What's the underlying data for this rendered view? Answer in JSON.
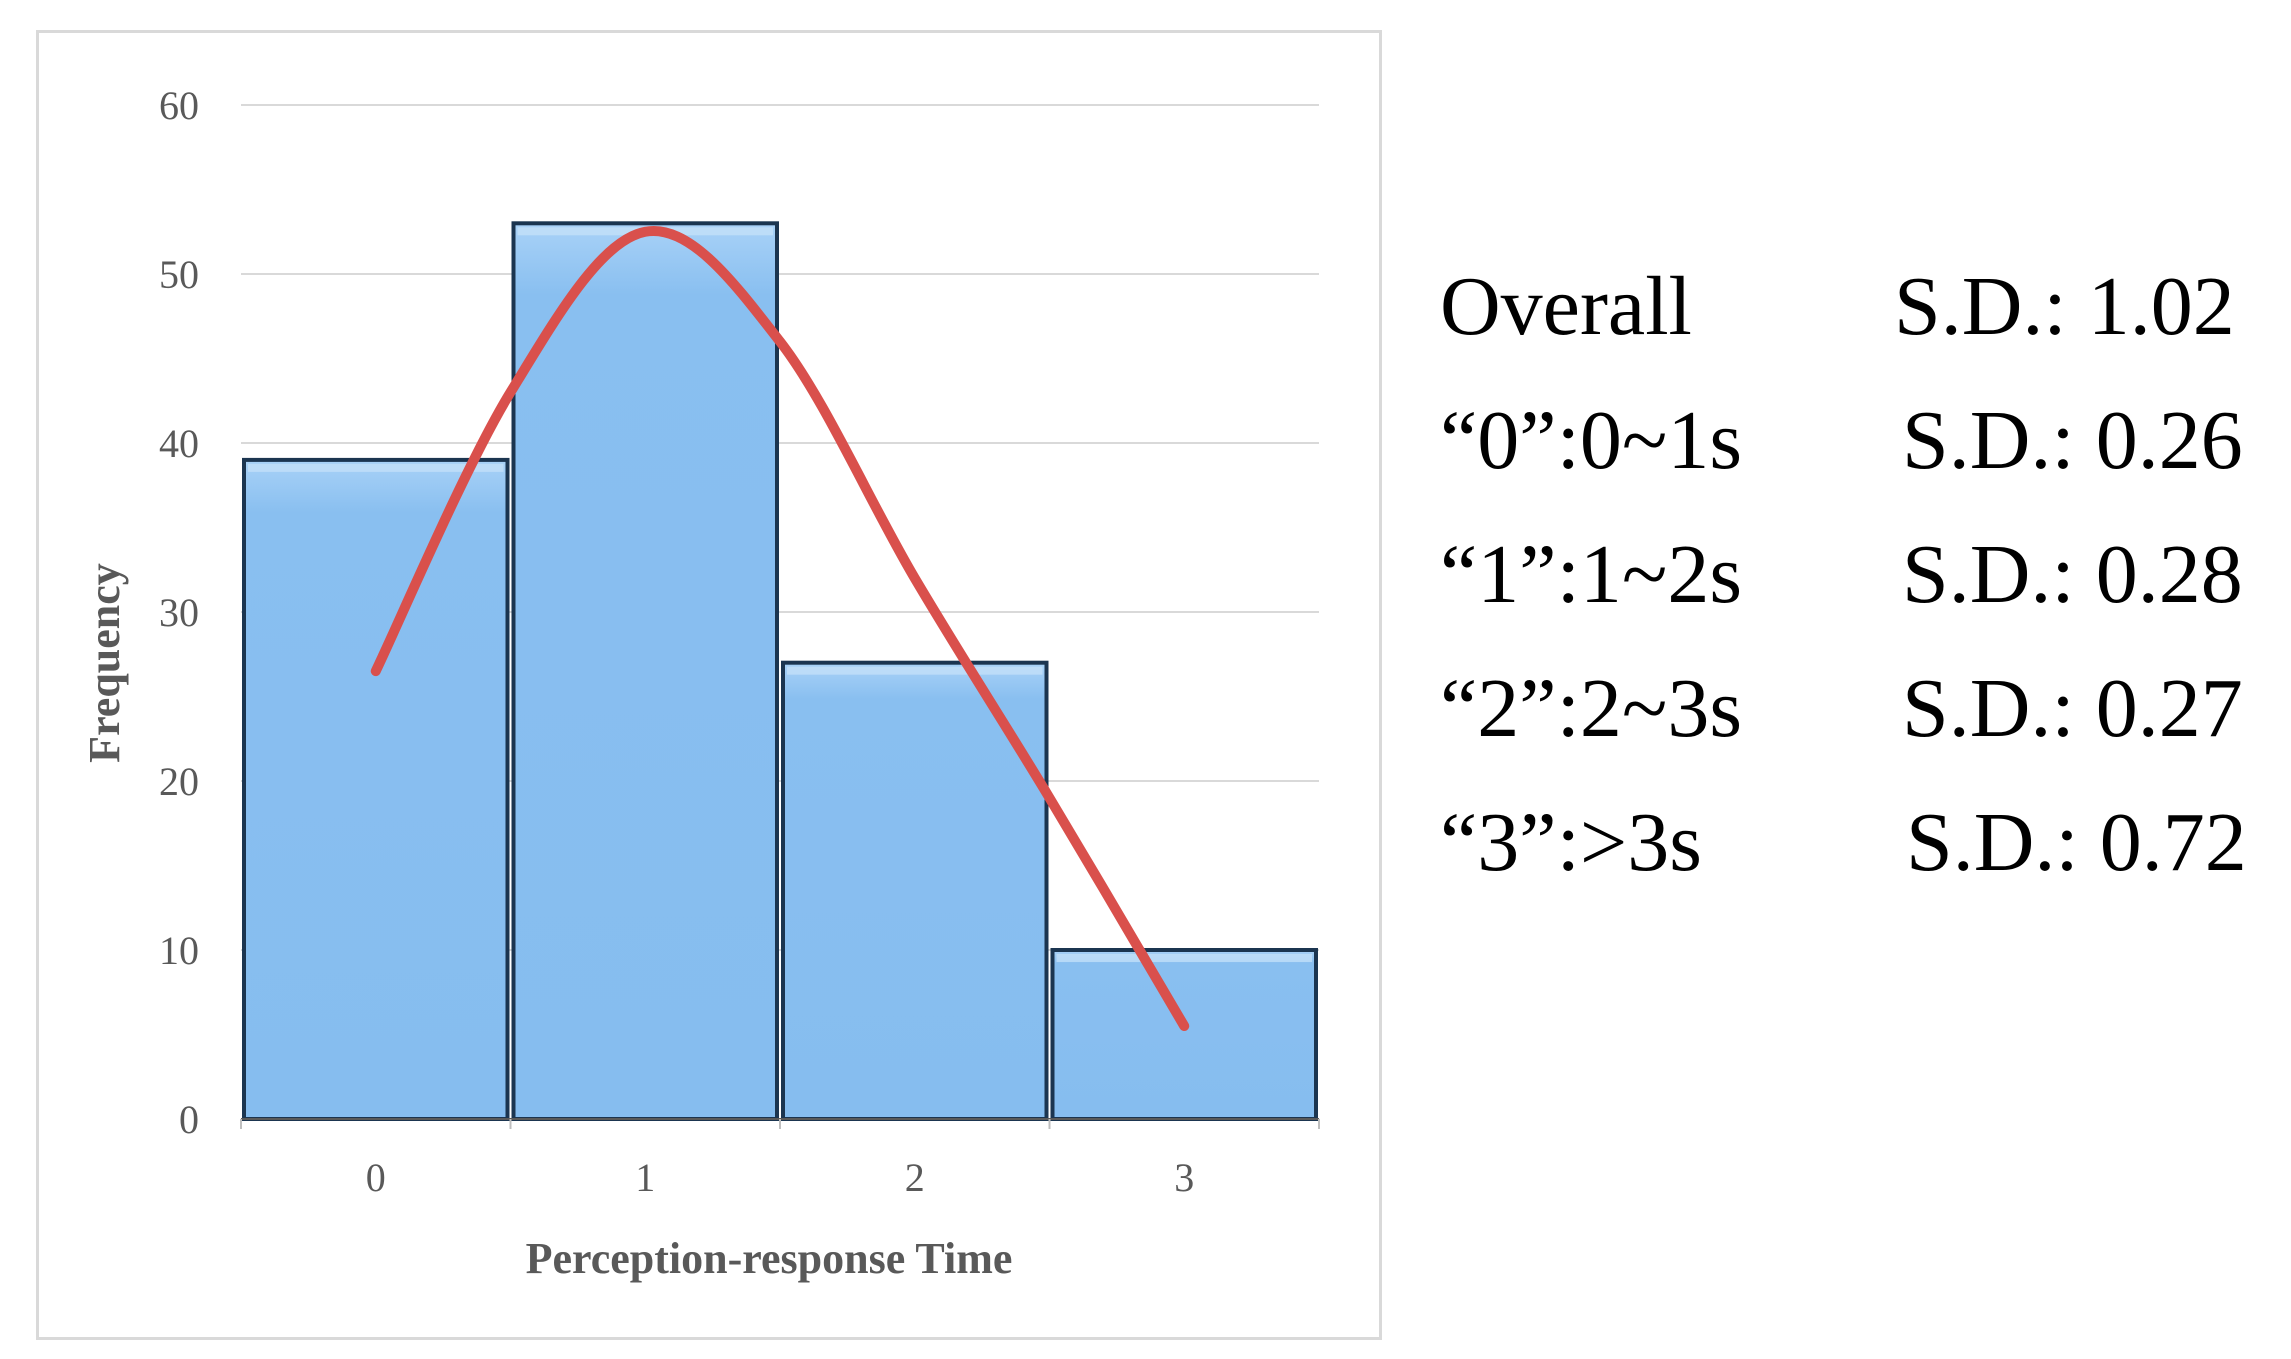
{
  "chart_data": {
    "type": "bar",
    "categories": [
      "0",
      "1",
      "2",
      "3"
    ],
    "values": [
      39,
      53,
      27,
      10
    ],
    "trend_line": {
      "x": [
        0,
        0.5,
        1,
        1.5,
        2,
        2.5,
        3
      ],
      "y": [
        26.5,
        43,
        52.5,
        46,
        32,
        19,
        5.5
      ],
      "color": "#d9504c"
    },
    "title": "",
    "xlabel": "Perception-response Time",
    "ylabel": "Frequency",
    "ylim": [
      0,
      60
    ],
    "yticks": [
      "0",
      "10",
      "20",
      "30",
      "40",
      "50",
      "60"
    ],
    "grid": true,
    "bar_color": "#89bff0",
    "bar_border_color": "#1b3550",
    "grid_color": "#d9d9d9"
  },
  "stats": [
    {
      "label": "Overall",
      "value": "S.D.: 1.02"
    },
    {
      "label": "“0”:0~1s",
      "value": "S.D.: 0.26"
    },
    {
      "label": "“1”:1~2s",
      "value": "S.D.: 0.28"
    },
    {
      "label": "“2”:2~3s",
      "value": "S.D.: 0.27"
    },
    {
      "label": "“3”:>3s",
      "value": "S.D.: 0.72"
    }
  ]
}
